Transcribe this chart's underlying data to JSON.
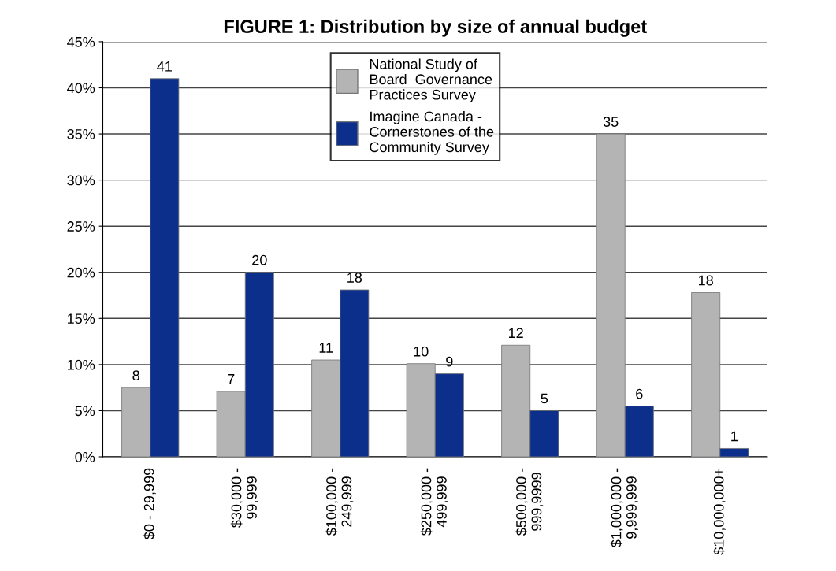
{
  "chart_data": {
    "type": "bar",
    "title": "FIGURE 1: Distribution by size of annual budget",
    "categories": [
      "$0 - 29,999",
      "$30,000 -\n99,999",
      "$100,000 -\n249,999",
      "$250,000 -\n499,999",
      "$500,000 -\n999,9999",
      "$1,000,000 -\n9,999,999",
      "$10,000,000+"
    ],
    "series": [
      {
        "name": "National Study of\nBoard  Governance\nPractices Survey",
        "color": "#b4b4b4",
        "values": [
          7.5,
          7.1,
          10.5,
          10.1,
          12.1,
          35.0,
          17.8
        ],
        "value_labels": [
          "8",
          "7",
          "11",
          "10",
          "12",
          "35",
          "18"
        ]
      },
      {
        "name": "Imagine Canada -\nCornerstones of the\nCommunity Survey",
        "color": "#0b2f8a",
        "values": [
          41.0,
          20.0,
          18.1,
          9.0,
          5.0,
          5.5,
          0.9
        ],
        "value_labels": [
          "41",
          "20",
          "18",
          "9",
          "5",
          "6",
          "1"
        ]
      }
    ],
    "ylim": [
      0,
      45
    ],
    "yticks": [
      {
        "value": 0,
        "label": "0%"
      },
      {
        "value": 5,
        "label": "5%"
      },
      {
        "value": 10,
        "label": "10%"
      },
      {
        "value": 15,
        "label": "15%"
      },
      {
        "value": 20,
        "label": "20%"
      },
      {
        "value": 25,
        "label": "25%"
      },
      {
        "value": 30,
        "label": "30%"
      },
      {
        "value": 35,
        "label": "35%"
      },
      {
        "value": 40,
        "label": "40%"
      },
      {
        "value": 45,
        "label": "45%"
      }
    ],
    "grid": "y",
    "legend": "top"
  }
}
